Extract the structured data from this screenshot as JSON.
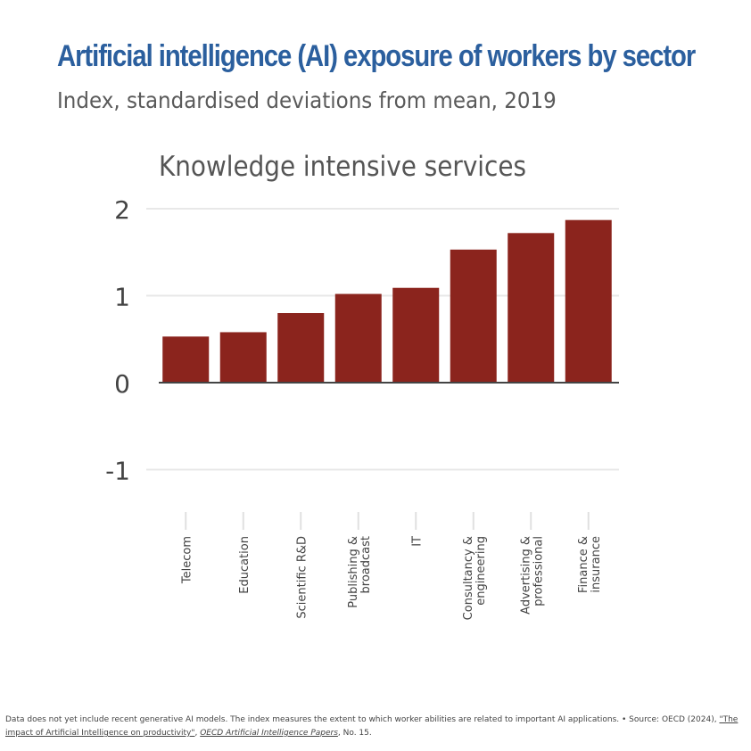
{
  "header": {
    "title": "Artificial intelligence (AI) exposure of workers by sector",
    "subtitle": "Index, standardised deviations from mean, 2019"
  },
  "colors": {
    "title": "#2b5f9e",
    "bar": "#8b241d",
    "grid": "#e8e8e8",
    "axis": "#444444"
  },
  "chart_data": {
    "type": "bar",
    "title": "Knowledge intensive services",
    "xlabel": "",
    "ylabel": "",
    "ylim": [
      -1.5,
      2.15
    ],
    "yticks": [
      "2",
      "1",
      "0",
      "-1"
    ],
    "ytick_values": [
      2,
      1,
      0,
      -1
    ],
    "grid": true,
    "categories": [
      [
        "Telecom"
      ],
      [
        "Education"
      ],
      [
        "Scientific R&D"
      ],
      [
        "Publishing &",
        "broadcast"
      ],
      [
        "IT"
      ],
      [
        "Consultancy &",
        "engineering"
      ],
      [
        "Advertising &",
        "professional"
      ],
      [
        "Finance &",
        "insurance"
      ]
    ],
    "values": [
      0.53,
      0.58,
      0.8,
      1.02,
      1.09,
      1.53,
      1.72,
      1.87
    ]
  },
  "footnote": {
    "text": "Data does not yet include recent generative AI models. The index measures the extent to which worker abilities are related to important AI applications. • Source: OECD (2024), ",
    "link": "\"The impact of Artificial Intelligence on productivity\"",
    "sep": ", ",
    "series": "OECD Artificial Intelligence Papers",
    "end": ", No. 15."
  }
}
